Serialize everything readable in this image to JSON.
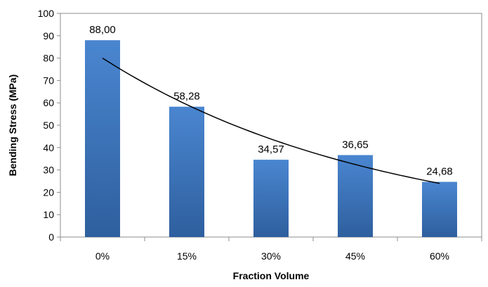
{
  "chart_data": {
    "type": "bar",
    "title": "",
    "xlabel": "Fraction Volume",
    "ylabel": "Bending Stress (MPa)",
    "categories": [
      "0%",
      "15%",
      "30%",
      "45%",
      "60%"
    ],
    "values": [
      88.0,
      58.28,
      34.57,
      36.65,
      24.68
    ],
    "value_labels": [
      "88,00",
      "58,28",
      "34,57",
      "36,65",
      "24,68"
    ],
    "ylim": [
      0,
      100
    ],
    "yticks": [
      0,
      10,
      20,
      30,
      40,
      50,
      60,
      70,
      80,
      90,
      100
    ],
    "grid": false,
    "trendline": {
      "type": "exponential",
      "start": 80,
      "end": 24
    },
    "colors": {
      "bar_top": "#4a86d0",
      "bar_bottom": "#2e5f9e",
      "trend": "#000000",
      "axis": "#8c8c8c"
    }
  }
}
